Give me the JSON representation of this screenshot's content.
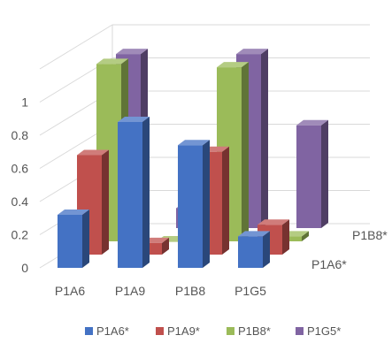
{
  "chart_data": {
    "type": "bar",
    "subtype": "3d-column",
    "categories": [
      "P1A6",
      "P1A9",
      "P1B8",
      "P1G5"
    ],
    "depth_labels": [
      "P1A6*",
      "P1A9*",
      "P1B8*",
      "P1G5*"
    ],
    "series": [
      {
        "name": "P1A6*",
        "color": "#4472C4",
        "values": [
          0.32,
          0.88,
          0.74,
          0.19
        ]
      },
      {
        "name": "P1A9*",
        "color": "#C0504D",
        "values": [
          0.6,
          0.07,
          0.62,
          0.18
        ]
      },
      {
        "name": "P1B8*",
        "color": "#9BBB59",
        "values": [
          1.07,
          0.0,
          1.05,
          0.03
        ]
      },
      {
        "name": "P1G5*",
        "color": "#8064A2",
        "values": [
          1.05,
          0.12,
          1.05,
          0.62
        ]
      }
    ],
    "y_ticks": [
      "0",
      "0.2",
      "0.4",
      "0.6",
      "0.8",
      "1"
    ],
    "ylim": [
      0,
      1.2
    ],
    "grid": true,
    "legend_position": "bottom"
  }
}
